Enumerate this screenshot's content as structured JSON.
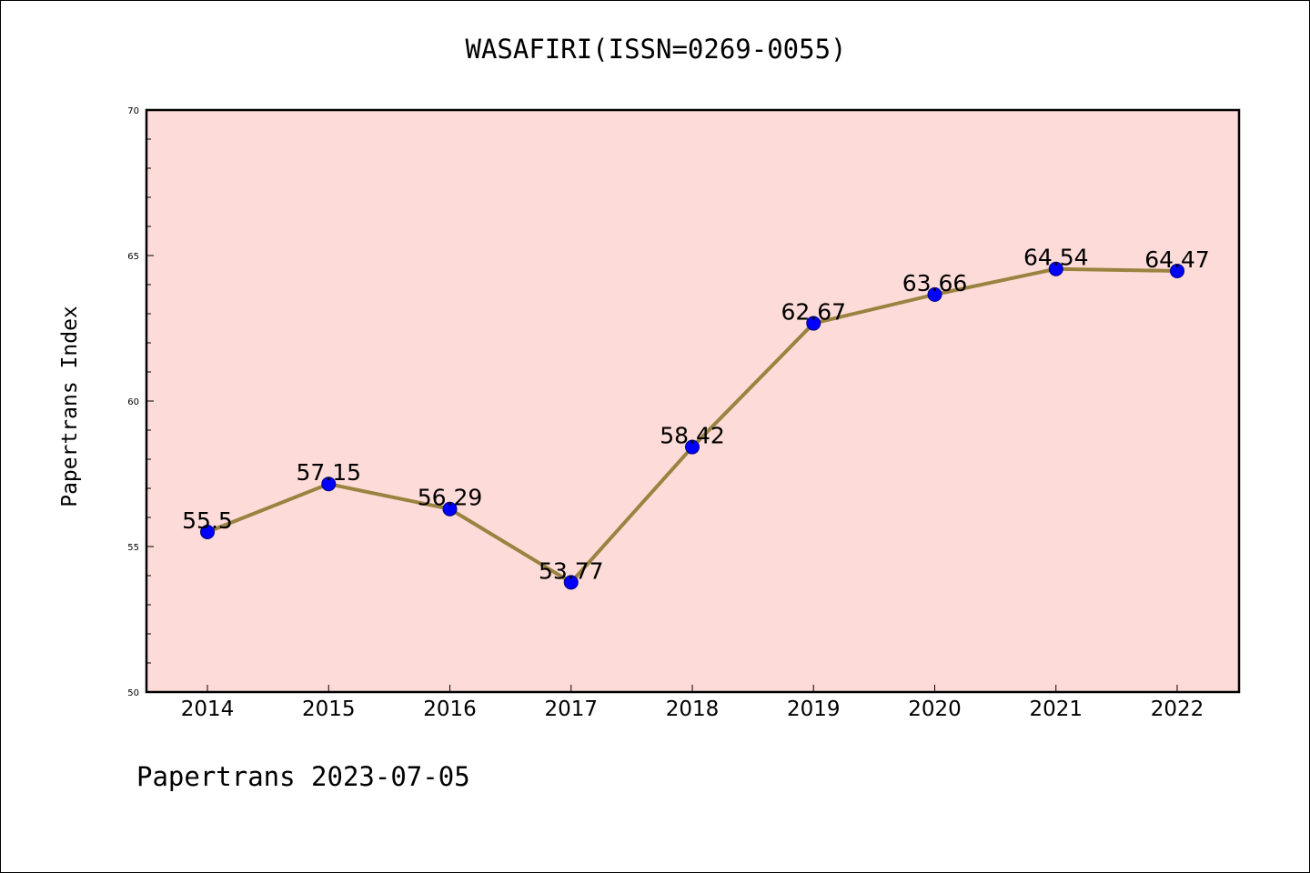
{
  "chart_data": {
    "type": "line",
    "title": "WASAFIRI(ISSN=0269-0055)",
    "ylabel": "Papertrans Index",
    "xlabel": "",
    "categories": [
      "2014",
      "2015",
      "2016",
      "2017",
      "2018",
      "2019",
      "2020",
      "2021",
      "2022"
    ],
    "series": [
      {
        "values": [
          55.5,
          57.15,
          56.29,
          53.77,
          58.42,
          62.67,
          63.66,
          64.54,
          64.47
        ],
        "labels": [
          "55.5",
          "57.15",
          "56.29",
          "53.77",
          "58.42",
          "62.67",
          "63.66",
          "64.54",
          "64.47"
        ]
      }
    ],
    "ylim": [
      50,
      70
    ],
    "yticks": [
      "50",
      "55",
      "60",
      "65",
      "70"
    ],
    "grid": false,
    "legend": "none",
    "colors": {
      "plot_background": "#fddbd8",
      "line": "#9a8340",
      "marker": "#0000ff"
    }
  },
  "footer": "Papertrans 2023-07-05"
}
